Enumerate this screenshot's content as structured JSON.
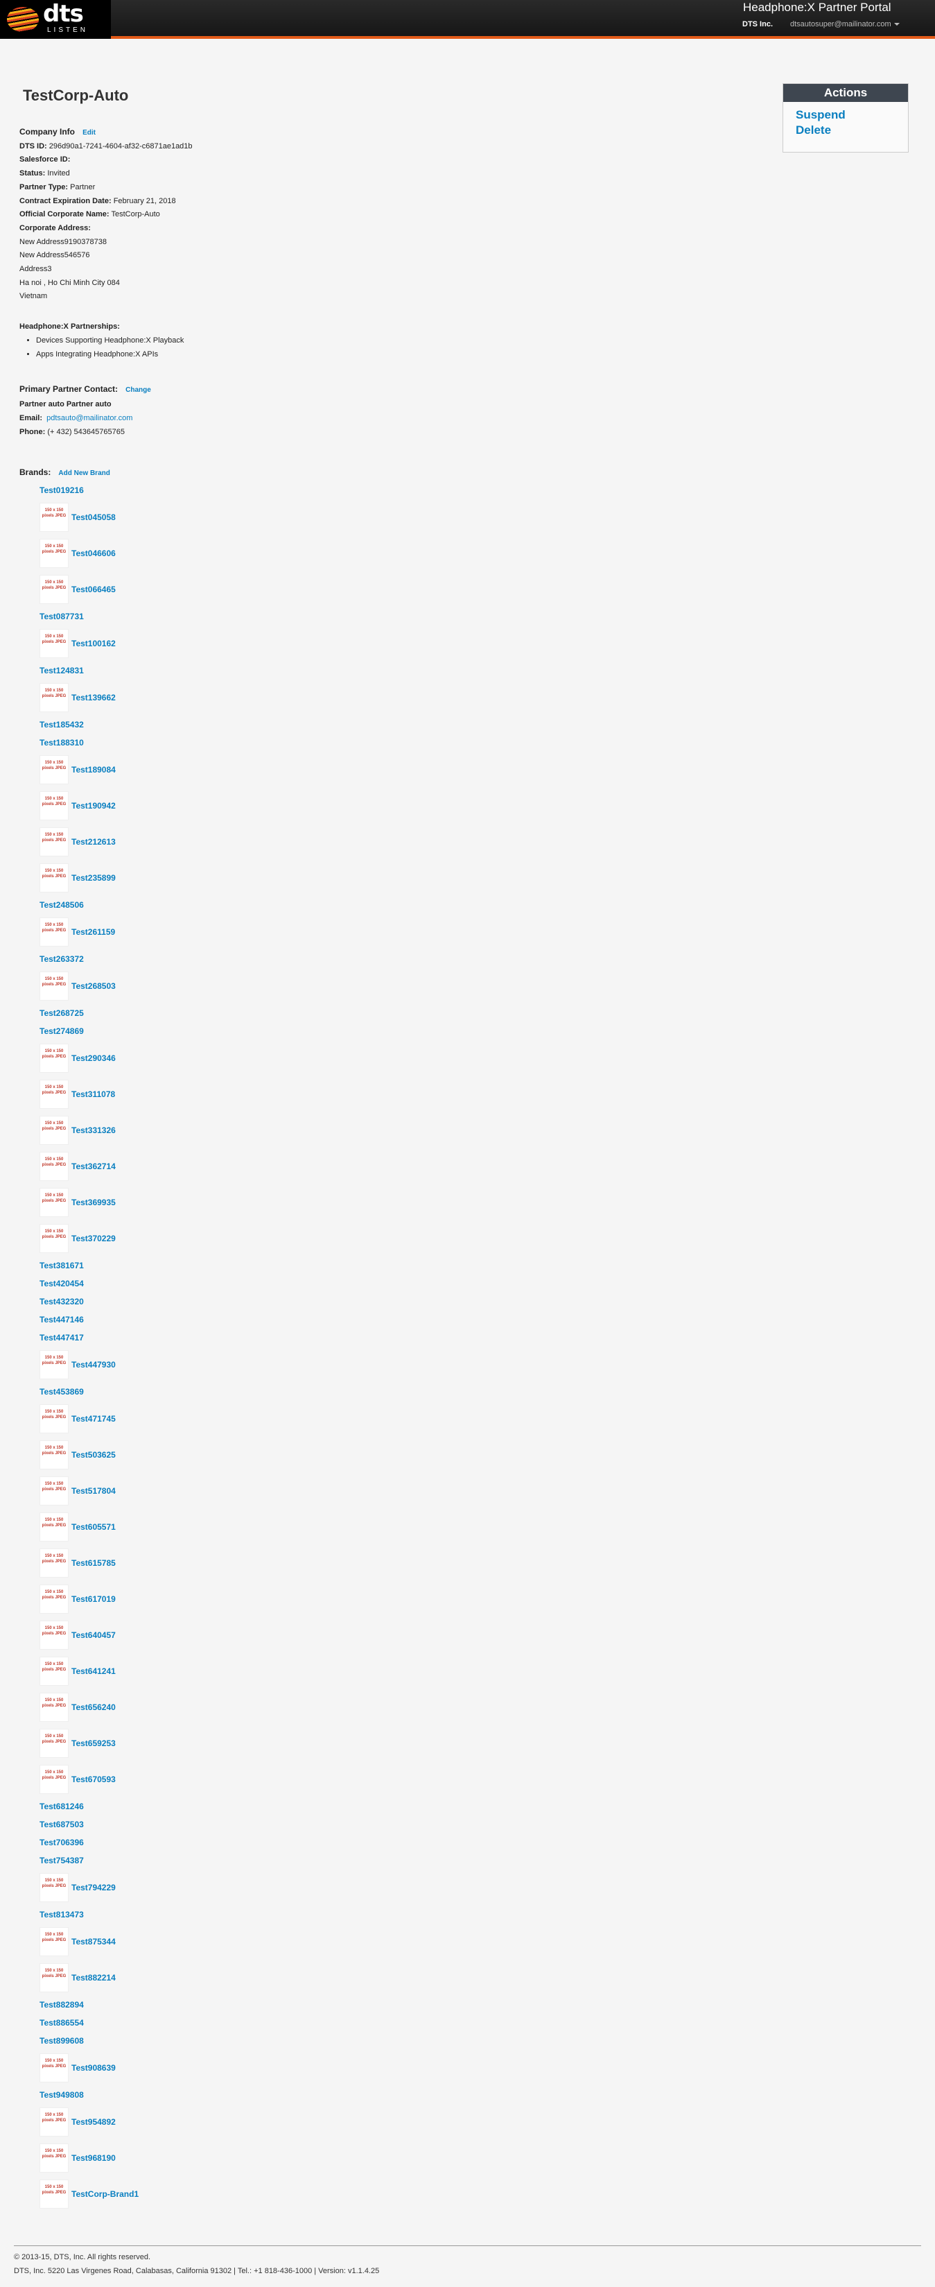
{
  "header": {
    "logo_text": "dts",
    "logo_sub": "LISTEN",
    "portal_title": "Headphone:X Partner Portal",
    "company": "DTS Inc.",
    "user_email": "dtsautosuper@mailinator.com"
  },
  "page_title": "TestCorp-Auto",
  "company_info": {
    "heading": "Company Info",
    "edit_label": "Edit",
    "dts_id_label": "DTS ID:",
    "dts_id": "296d90a1-7241-4604-af32-c6871ae1ad1b",
    "salesforce_label": "Salesforce ID:",
    "salesforce_id": "",
    "status_label": "Status:",
    "status": "Invited",
    "partner_type_label": "Partner Type:",
    "partner_type": "Partner",
    "contract_label": "Contract Expiration Date:",
    "contract_date": "February 21, 2018",
    "official_name_label": "Official Corporate Name:",
    "official_name": "TestCorp-Auto",
    "address_label": "Corporate Address:",
    "address_lines": [
      "New Address9190378738",
      "New Address546576",
      "Address3",
      "Ha noi , Ho Chi Minh City 084",
      "Vietnam"
    ]
  },
  "partnerships": {
    "heading": "Headphone:X Partnerships:",
    "items": [
      "Devices Supporting Headphone:X Playback",
      "Apps Integrating Headphone:X APIs"
    ]
  },
  "contact": {
    "heading": "Primary Partner Contact:",
    "change_label": "Change",
    "name": "Partner auto Partner auto",
    "email_label": "Email:",
    "email": "pdtsauto@mailinator.com",
    "phone_label": "Phone:",
    "phone": "(+ 432) 543645765765"
  },
  "actions": {
    "title": "Actions",
    "suspend_label": "Suspend",
    "delete_label": "Delete"
  },
  "brands": {
    "heading": "Brands:",
    "add_label": "Add New Brand",
    "thumb_text": "150 x 150 pixels JPEG",
    "items": [
      {
        "name": "Test019216",
        "img": false
      },
      {
        "name": "Test045058",
        "img": true
      },
      {
        "name": "Test046606",
        "img": true
      },
      {
        "name": "Test066465",
        "img": true
      },
      {
        "name": "Test087731",
        "img": false
      },
      {
        "name": "Test100162",
        "img": true
      },
      {
        "name": "Test124831",
        "img": false
      },
      {
        "name": "Test139662",
        "img": true
      },
      {
        "name": "Test185432",
        "img": false
      },
      {
        "name": "Test188310",
        "img": false
      },
      {
        "name": "Test189084",
        "img": true
      },
      {
        "name": "Test190942",
        "img": true
      },
      {
        "name": "Test212613",
        "img": true
      },
      {
        "name": "Test235899",
        "img": true
      },
      {
        "name": "Test248506",
        "img": false
      },
      {
        "name": "Test261159",
        "img": true
      },
      {
        "name": "Test263372",
        "img": false
      },
      {
        "name": "Test268503",
        "img": true
      },
      {
        "name": "Test268725",
        "img": false
      },
      {
        "name": "Test274869",
        "img": false
      },
      {
        "name": "Test290346",
        "img": true
      },
      {
        "name": "Test311078",
        "img": true
      },
      {
        "name": "Test331326",
        "img": true
      },
      {
        "name": "Test362714",
        "img": true
      },
      {
        "name": "Test369935",
        "img": true
      },
      {
        "name": "Test370229",
        "img": true
      },
      {
        "name": "Test381671",
        "img": false
      },
      {
        "name": "Test420454",
        "img": false
      },
      {
        "name": "Test432320",
        "img": false
      },
      {
        "name": "Test447146",
        "img": false
      },
      {
        "name": "Test447417",
        "img": false
      },
      {
        "name": "Test447930",
        "img": true
      },
      {
        "name": "Test453869",
        "img": false
      },
      {
        "name": "Test471745",
        "img": true
      },
      {
        "name": "Test503625",
        "img": true
      },
      {
        "name": "Test517804",
        "img": true
      },
      {
        "name": "Test605571",
        "img": true
      },
      {
        "name": "Test615785",
        "img": true
      },
      {
        "name": "Test617019",
        "img": true
      },
      {
        "name": "Test640457",
        "img": true
      },
      {
        "name": "Test641241",
        "img": true
      },
      {
        "name": "Test656240",
        "img": true
      },
      {
        "name": "Test659253",
        "img": true
      },
      {
        "name": "Test670593",
        "img": true
      },
      {
        "name": "Test681246",
        "img": false
      },
      {
        "name": "Test687503",
        "img": false
      },
      {
        "name": "Test706396",
        "img": false
      },
      {
        "name": "Test754387",
        "img": false
      },
      {
        "name": "Test794229",
        "img": true
      },
      {
        "name": "Test813473",
        "img": false
      },
      {
        "name": "Test875344",
        "img": true
      },
      {
        "name": "Test882214",
        "img": true
      },
      {
        "name": "Test882894",
        "img": false
      },
      {
        "name": "Test886554",
        "img": false
      },
      {
        "name": "Test899608",
        "img": false
      },
      {
        "name": "Test908639",
        "img": true
      },
      {
        "name": "Test949808",
        "img": false
      },
      {
        "name": "Test954892",
        "img": true
      },
      {
        "name": "Test968190",
        "img": true
      },
      {
        "name": "TestCorp-Brand1",
        "img": true
      }
    ]
  },
  "footer": {
    "copyright": "© 2013-15, DTS, Inc. All rights reserved.",
    "address": "DTS, Inc. 5220 Las Virgenes Road, Calabasas, California 91302 | Tel.: +1 818-436-1000 | Version: v1.1.4.25"
  }
}
